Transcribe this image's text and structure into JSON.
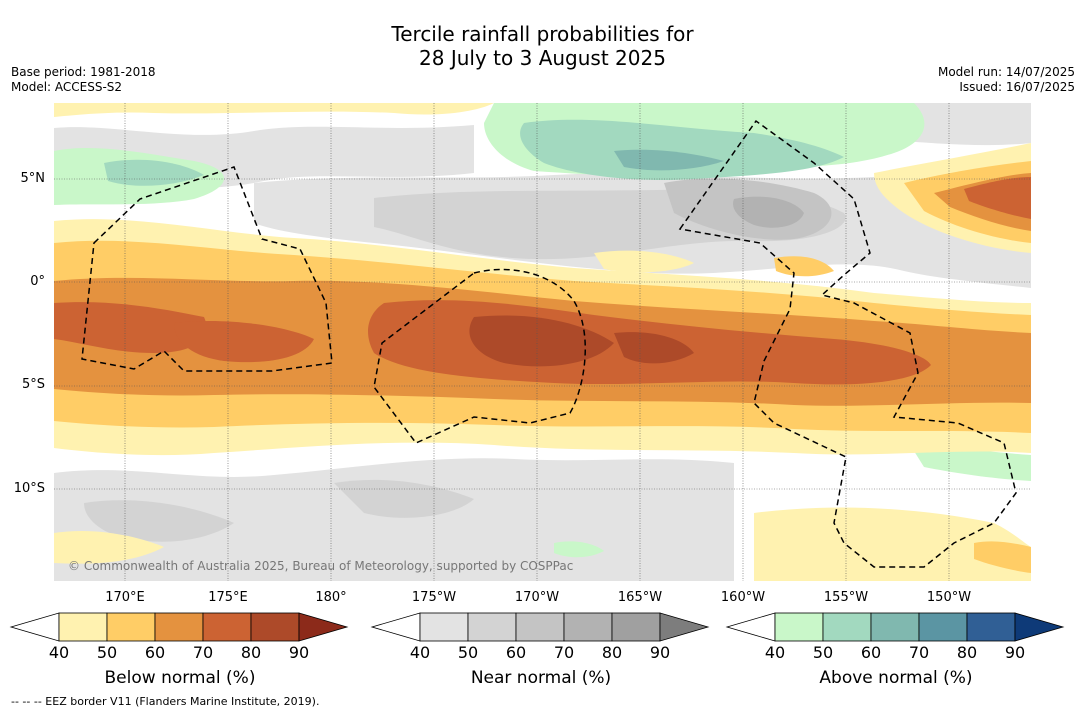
{
  "title": {
    "line1": "Tercile rainfall probabilities for",
    "line2": "28 July to 3 August 2025"
  },
  "meta_left": {
    "base_period": "Base period: 1981-2018",
    "model": "Model: ACCESS-S2"
  },
  "meta_right": {
    "model_run": "Model run: 14/07/2025",
    "issued": "Issued: 16/07/2025"
  },
  "map": {
    "lat_labels": [
      "5°N",
      "0°",
      "5°S",
      "10°S"
    ],
    "lon_labels": [
      "170°E",
      "175°E",
      "180°",
      "175°W",
      "170°W",
      "165°W",
      "160°W",
      "155°W",
      "150°W"
    ],
    "copyright": "© Commonwealth of Australia 2025, Bureau of Meteorology, supported by COSPPac",
    "eez_note": "-- -- -- EEZ border V11 (Flanders Marine Institute, 2019)."
  },
  "colorbars": [
    {
      "label": "Below normal (%)",
      "ticks": [
        "40",
        "50",
        "60",
        "70",
        "80",
        "90"
      ],
      "colors": [
        "#fff2b0",
        "#ffcd66",
        "#e4923f",
        "#cc6333",
        "#ad4a29",
        "#8c2a1a"
      ]
    },
    {
      "label": "Near normal (%)",
      "ticks": [
        "40",
        "50",
        "60",
        "70",
        "80",
        "90"
      ],
      "colors": [
        "#e3e3e3",
        "#d3d3d3",
        "#c4c4c4",
        "#b2b2b2",
        "#a0a0a0",
        "#7d7d7d"
      ]
    },
    {
      "label": "Above normal (%)",
      "ticks": [
        "40",
        "50",
        "60",
        "70",
        "80",
        "90"
      ],
      "colors": [
        "#c9f7c9",
        "#a2d9bf",
        "#80b8af",
        "#5b95a3",
        "#305f95",
        "#0e3a78"
      ]
    }
  ]
}
